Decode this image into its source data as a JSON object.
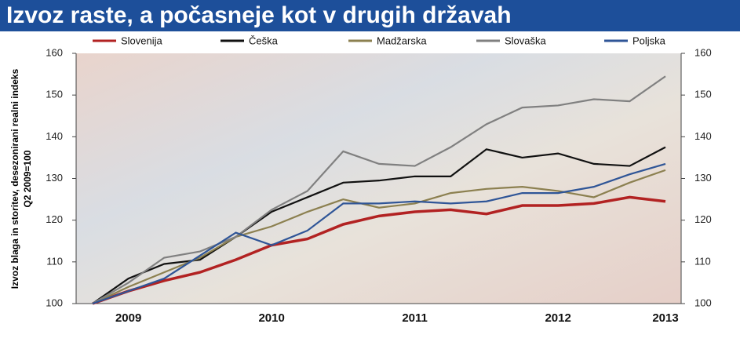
{
  "chart_data": {
    "type": "line",
    "title": "Izvoz raste, a počasneje kot v drugih državah",
    "ylabel": [
      "Izvoz blaga in storitev, desezonirani realni indeks",
      "Q2 2009=100"
    ],
    "categories": [
      null,
      "2009",
      null,
      null,
      null,
      "2010",
      null,
      null,
      null,
      "2011",
      null,
      null,
      null,
      "2012",
      null,
      null,
      "2013"
    ],
    "ylim": [
      100,
      160
    ],
    "yticks": [
      100,
      110,
      120,
      130,
      140,
      150,
      160
    ],
    "y2lim": [
      100,
      160
    ],
    "y2ticks": [
      100,
      110,
      120,
      130,
      140,
      150,
      160
    ],
    "series": [
      {
        "name": "Slovenija",
        "color": "#b22222",
        "values": [
          100,
          103,
          105.5,
          107.5,
          110.5,
          114,
          115.5,
          119,
          121,
          122,
          122.5,
          121.5,
          123.5,
          123.5,
          124,
          125.5,
          124.5
        ]
      },
      {
        "name": "Češka",
        "color": "#111111",
        "values": [
          100,
          106,
          109.5,
          110.5,
          116,
          122,
          125.5,
          129,
          129.5,
          130.5,
          130.5,
          137,
          135,
          136,
          133.5,
          133,
          137.5
        ]
      },
      {
        "name": "Madžarska",
        "color": "#8c8050",
        "values": [
          100,
          104,
          107.5,
          111,
          116,
          118.5,
          122,
          125,
          123,
          124,
          126.5,
          127.5,
          128,
          127,
          125.5,
          129,
          132
        ]
      },
      {
        "name": "Slovaška",
        "color": "#808080",
        "values": [
          100,
          105,
          111,
          112.5,
          116,
          122.5,
          127,
          136.5,
          133.5,
          133,
          137.5,
          143,
          147,
          147.5,
          149,
          148.5,
          154.5
        ]
      },
      {
        "name": "Poljska",
        "color": "#2f5597",
        "values": [
          100,
          103,
          106,
          111.5,
          117,
          114,
          117.5,
          124,
          124,
          124.5,
          124,
          124.5,
          126.5,
          126.5,
          128,
          131,
          133.5
        ]
      }
    ]
  }
}
